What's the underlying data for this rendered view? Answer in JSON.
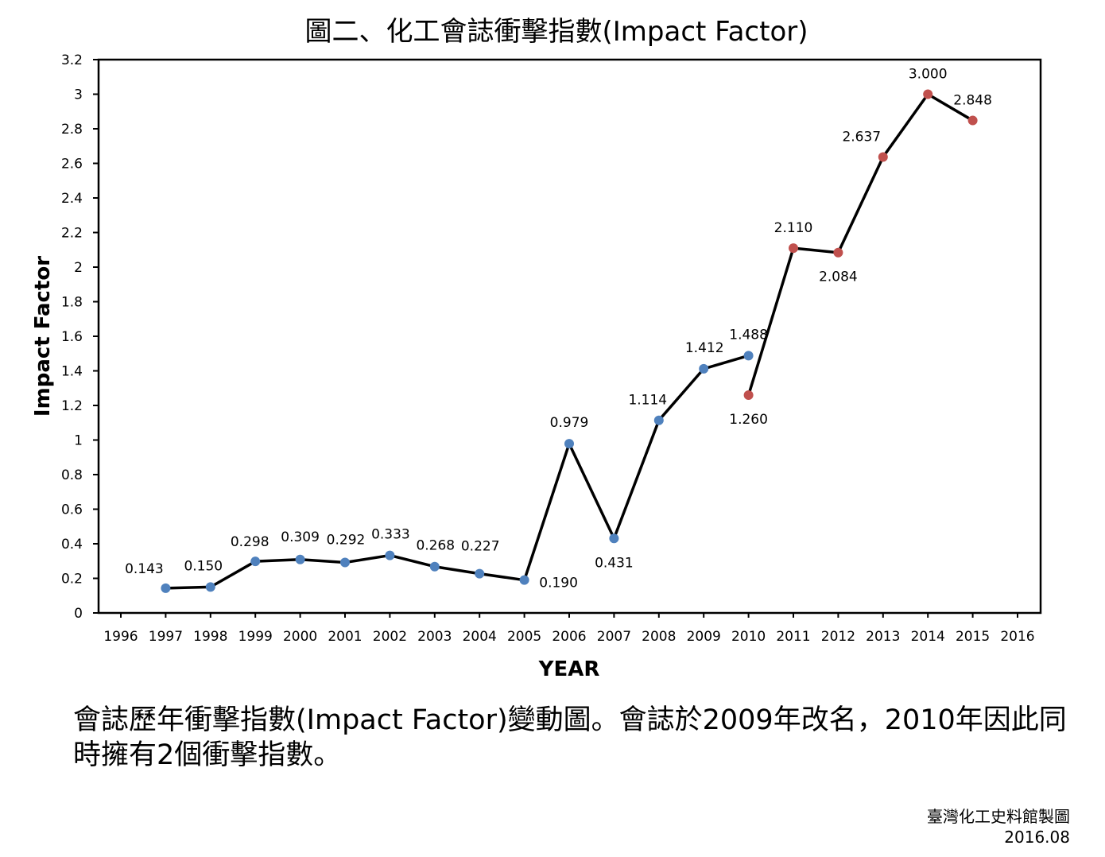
{
  "title": "圖二、化工會誌衝擊指數(Impact Factor)",
  "caption": "會誌歷年衝擊指數(Impact Factor)變動圖。會誌於2009年改名，2010年因此同時擁有2個衝擊指數。",
  "credit": {
    "maker": "臺灣化工史料館製圖",
    "date": "2016.08"
  },
  "colors": {
    "series_before": "#4f81bd",
    "series_after": "#c0504d",
    "line": "#000000"
  },
  "chart_data": {
    "type": "line",
    "xlabel": "YEAR",
    "ylabel": "Impact Factor",
    "ylim": [
      0,
      3.2
    ],
    "yticks": [
      "0",
      "0.2",
      "0.4",
      "0.6",
      "0.8",
      "1",
      "1.2",
      "1.4",
      "1.6",
      "1.8",
      "2",
      "2.2",
      "2.4",
      "2.6",
      "2.8",
      "3",
      "3.2"
    ],
    "categories": [
      "1996",
      "1997",
      "1998",
      "1999",
      "2000",
      "2001",
      "2002",
      "2003",
      "2004",
      "2005",
      "2006",
      "2007",
      "2008",
      "2009",
      "2010",
      "2011",
      "2012",
      "2013",
      "2014",
      "2015",
      "2016"
    ],
    "grid": false,
    "legend": "none",
    "series": [
      {
        "x": [
          "1997",
          "1998",
          "1999",
          "2000",
          "2001",
          "2002",
          "2003",
          "2004",
          "2005",
          "2006",
          "2007",
          "2008",
          "2009",
          "2010"
        ],
        "values": [
          0.143,
          0.15,
          0.298,
          0.309,
          0.292,
          0.333,
          0.268,
          0.227,
          0.19,
          0.979,
          0.431,
          1.114,
          1.412,
          1.488
        ],
        "labels": [
          "0.143",
          "0.150",
          "0.298",
          "0.309",
          "0.292",
          "0.333",
          "0.268",
          "0.227",
          "0.190",
          "0.979",
          "0.431",
          "1.114",
          "1.412",
          "1.488"
        ],
        "color": "#4f81bd"
      },
      {
        "x": [
          "2010",
          "2011",
          "2012",
          "2013",
          "2014",
          "2015"
        ],
        "values": [
          1.26,
          2.11,
          2.084,
          2.637,
          3.0,
          2.848
        ],
        "labels": [
          "1.260",
          "2.110",
          "2.084",
          "2.637",
          "3.000",
          "2.848"
        ],
        "color": "#c0504d"
      }
    ]
  }
}
